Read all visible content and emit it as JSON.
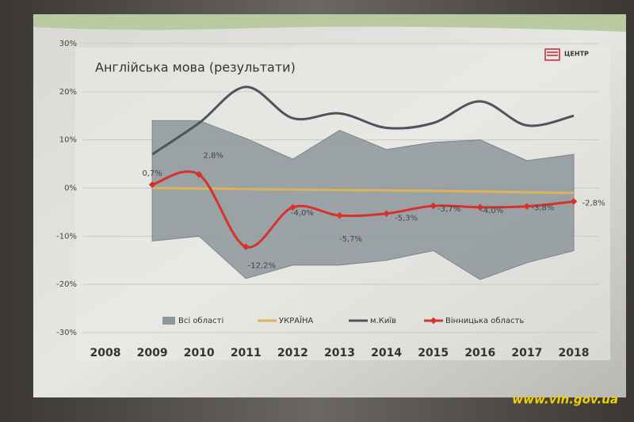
{
  "chart_data": {
    "type": "line",
    "title": "Англійська мова (результати)",
    "categories": [
      "2008",
      "2009",
      "2010",
      "2011",
      "2012",
      "2013",
      "2014",
      "2015",
      "2016",
      "2017",
      "2018"
    ],
    "ylim": [
      -30,
      30
    ],
    "yticks": [
      {
        "value": -30,
        "label": "-30%"
      },
      {
        "value": -20,
        "label": "-20%"
      },
      {
        "value": -10,
        "label": "-10%"
      },
      {
        "value": 0,
        "label": "0%"
      },
      {
        "value": 10,
        "label": "10%"
      },
      {
        "value": 20,
        "label": "20%"
      },
      {
        "value": 30,
        "label": "30%"
      }
    ],
    "grid": true,
    "series": [
      {
        "name": "Всі області",
        "kind": "range",
        "color": "#8e979c",
        "values": [
          null,
          14,
          14,
          10.3,
          6,
          12,
          8,
          9.5,
          10,
          5.7,
          7
        ],
        "lower": [
          null,
          -11,
          -10,
          -18.8,
          -16,
          -16,
          -15,
          -13,
          -19,
          -15.5,
          -13
        ]
      },
      {
        "name": "УКРАЇНА",
        "color": "#d9b25a",
        "values": [
          null,
          0,
          -0.1,
          -0.2,
          -0.3,
          -0.4,
          -0.5,
          -0.6,
          -0.7,
          -0.9,
          -1
        ]
      },
      {
        "name": "м.Київ",
        "color": "#4d545c",
        "values": [
          null,
          7,
          13.5,
          21,
          14.5,
          15.5,
          12.5,
          13.5,
          18,
          13,
          15
        ]
      },
      {
        "name": "Вінницька область",
        "color": "#d6322b",
        "markers": true,
        "values": [
          null,
          0.7,
          2.8,
          -12.2,
          -4.0,
          -5.7,
          -5.3,
          -3.7,
          -4.0,
          -3.8,
          -2.8
        ],
        "value_labels": [
          null,
          "0,7%",
          "2,8%",
          "-12,2%",
          "-4,0%",
          "-5,7%",
          "-5,3%",
          "-3,7%",
          "-4,0%",
          "-3,8%",
          "-2,8%"
        ]
      }
    ]
  },
  "logo": "ЦЕНТР",
  "watermark": "www.vin.gov.ua"
}
